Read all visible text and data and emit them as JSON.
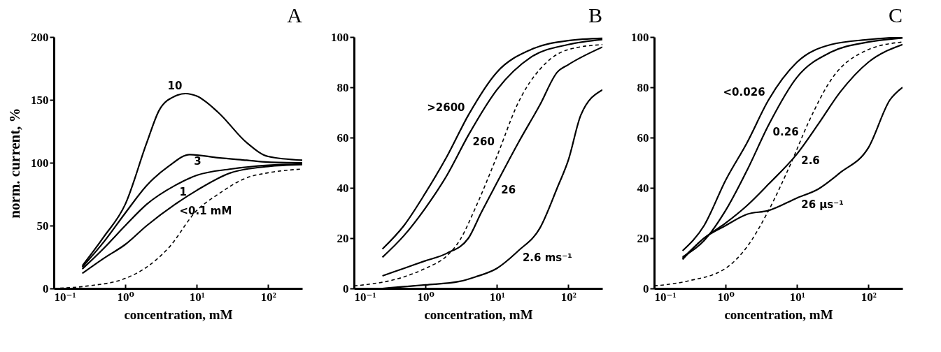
{
  "chart_data": [
    {
      "type": "line",
      "title": "A",
      "xlabel": "concentration, mM",
      "ylabel": "norm. current, %",
      "log": "x",
      "xlim": [
        0.1,
        300
      ],
      "ylim": [
        0,
        200
      ],
      "xticks": [
        {
          "value": 0.1,
          "label": "10⁻¹"
        },
        {
          "value": 1,
          "label": "10⁰"
        },
        {
          "value": 10,
          "label": "10¹"
        },
        {
          "value": 100,
          "label": "10²"
        }
      ],
      "yticks": [
        0,
        50,
        100,
        150,
        200
      ],
      "x": [
        0.25,
        0.5,
        1,
        2,
        3,
        5,
        7,
        10,
        20,
        50,
        100,
        300
      ],
      "series": [
        {
          "name": "10",
          "color": "#000000",
          "values": [
            18,
            41,
            67,
            116,
            142,
            153,
            155,
            153,
            140,
            116,
            105,
            102
          ]
        },
        {
          "name": "3",
          "color": "#000000",
          "x": [
            0.25,
            0.5,
            1,
            2,
            4,
            8,
            20,
            50,
            100,
            300
          ],
          "values": [
            17,
            37,
            60,
            82,
            97,
            106.5,
            104,
            102,
            100.5,
            100
          ]
        },
        {
          "name": "1",
          "color": "#000000",
          "x": [
            0.25,
            0.5,
            1,
            2,
            5,
            10,
            30,
            100,
            300
          ],
          "values": [
            15.5,
            32,
            50,
            67,
            82,
            90,
            95,
            98,
            99
          ]
        },
        {
          "name": "<0.1 mM",
          "color": "#000000",
          "x": [
            0.25,
            0.5,
            1,
            2,
            5,
            10,
            30,
            100,
            300
          ],
          "values": [
            12,
            24,
            35,
            50,
            67,
            78,
            92,
            97,
            98.5
          ]
        },
        {
          "color": "#000000",
          "line_style": "dashed",
          "x": [
            0.1,
            0.3,
            1,
            2,
            4,
            10,
            20,
            50,
            100,
            300
          ],
          "values": [
            0,
            2,
            8,
            17,
            32,
            62,
            75,
            88,
            92,
            95
          ]
        }
      ]
    },
    {
      "type": "line",
      "title": "B",
      "xlabel": "concentration, mM",
      "log": "x",
      "xlim": [
        0.1,
        300
      ],
      "ylim": [
        0,
        100
      ],
      "xticks": [
        {
          "value": 0.1,
          "label": "10⁻¹"
        },
        {
          "value": 1,
          "label": "10⁰"
        },
        {
          "value": 10,
          "label": "10¹"
        },
        {
          "value": 100,
          "label": "10²"
        }
      ],
      "yticks": [
        0,
        20,
        40,
        60,
        80,
        100
      ],
      "x": [
        0.25,
        0.5,
        1,
        2,
        4,
        10,
        30,
        100,
        300
      ],
      "series": [
        {
          "name": ">2600",
          "color": "#000000",
          "values": [
            15.7,
            25,
            38,
            52.5,
            69,
            86,
            95,
            98.6,
            99.5
          ]
        },
        {
          "name": "260",
          "color": "#000000",
          "values": [
            12.4,
            21,
            32,
            45,
            61,
            79,
            92,
            97,
            99
          ]
        },
        {
          "name": "26",
          "color": "#000000",
          "x": [
            0.25,
            0.5,
            1,
            2,
            4,
            6,
            10,
            20,
            40,
            70,
            100,
            300
          ],
          "values": [
            5,
            8,
            11,
            14,
            20,
            30,
            42,
            58,
            73,
            86,
            89,
            96
          ]
        },
        {
          "color": "#000000",
          "line_style": "dashed",
          "x": [
            0.1,
            0.5,
            1,
            2,
            3,
            5,
            10,
            20,
            50,
            100,
            300
          ],
          "values": [
            1,
            4.6,
            8,
            13,
            19,
            32,
            52.5,
            74,
            90,
            95,
            97
          ]
        },
        {
          "name": "2.6 ms⁻¹",
          "color": "#000000",
          "x": [
            0.25,
            1,
            3,
            5,
            10,
            20,
            40,
            70,
            100,
            150,
            300
          ],
          "values": [
            0,
            1.4,
            2.8,
            4.6,
            8,
            15,
            24,
            40,
            51,
            69,
            79
          ]
        }
      ]
    },
    {
      "type": "line",
      "title": "C",
      "xlabel": "concentration, mM",
      "log": "x",
      "xlim": [
        0.1,
        300
      ],
      "ylim": [
        0,
        100
      ],
      "xticks": [
        {
          "value": 0.1,
          "label": "10⁻¹"
        },
        {
          "value": 1,
          "label": "10⁰"
        },
        {
          "value": 10,
          "label": "10¹"
        },
        {
          "value": 100,
          "label": "10²"
        }
      ],
      "yticks": [
        0,
        20,
        40,
        60,
        80,
        100
      ],
      "x": [
        0.25,
        0.5,
        1,
        2,
        4,
        10,
        30,
        100,
        300
      ],
      "series": [
        {
          "name": "<0.026",
          "color": "#000000",
          "values": [
            15,
            25,
            43,
            58,
            75,
            90,
            97,
            99,
            100
          ]
        },
        {
          "name": "0.26",
          "color": "#000000",
          "values": [
            12.5,
            19,
            31,
            47,
            65,
            84,
            94,
            98,
            99.6
          ]
        },
        {
          "name": "2.6",
          "color": "#000000",
          "x": [
            0.25,
            0.5,
            1,
            2,
            4,
            10,
            20,
            40,
            100,
            300
          ],
          "values": [
            12,
            20,
            26,
            33,
            41.5,
            53.5,
            65.5,
            78,
            90,
            97
          ]
        },
        {
          "name": "26 μs⁻¹",
          "color": "#000000",
          "x": [
            0.25,
            0.5,
            1,
            2,
            4,
            10,
            20,
            40,
            100,
            200,
            300
          ],
          "values": [
            11.5,
            20,
            25,
            29.5,
            31,
            36,
            39.6,
            46,
            56,
            75,
            80
          ]
        },
        {
          "color": "#000000",
          "line_style": "dashed",
          "x": [
            0.1,
            0.3,
            1,
            2,
            4,
            8,
            15,
            30,
            100,
            300
          ],
          "values": [
            1,
            3,
            8,
            16.6,
            31,
            49,
            67,
            83,
            95,
            98
          ]
        }
      ]
    }
  ]
}
